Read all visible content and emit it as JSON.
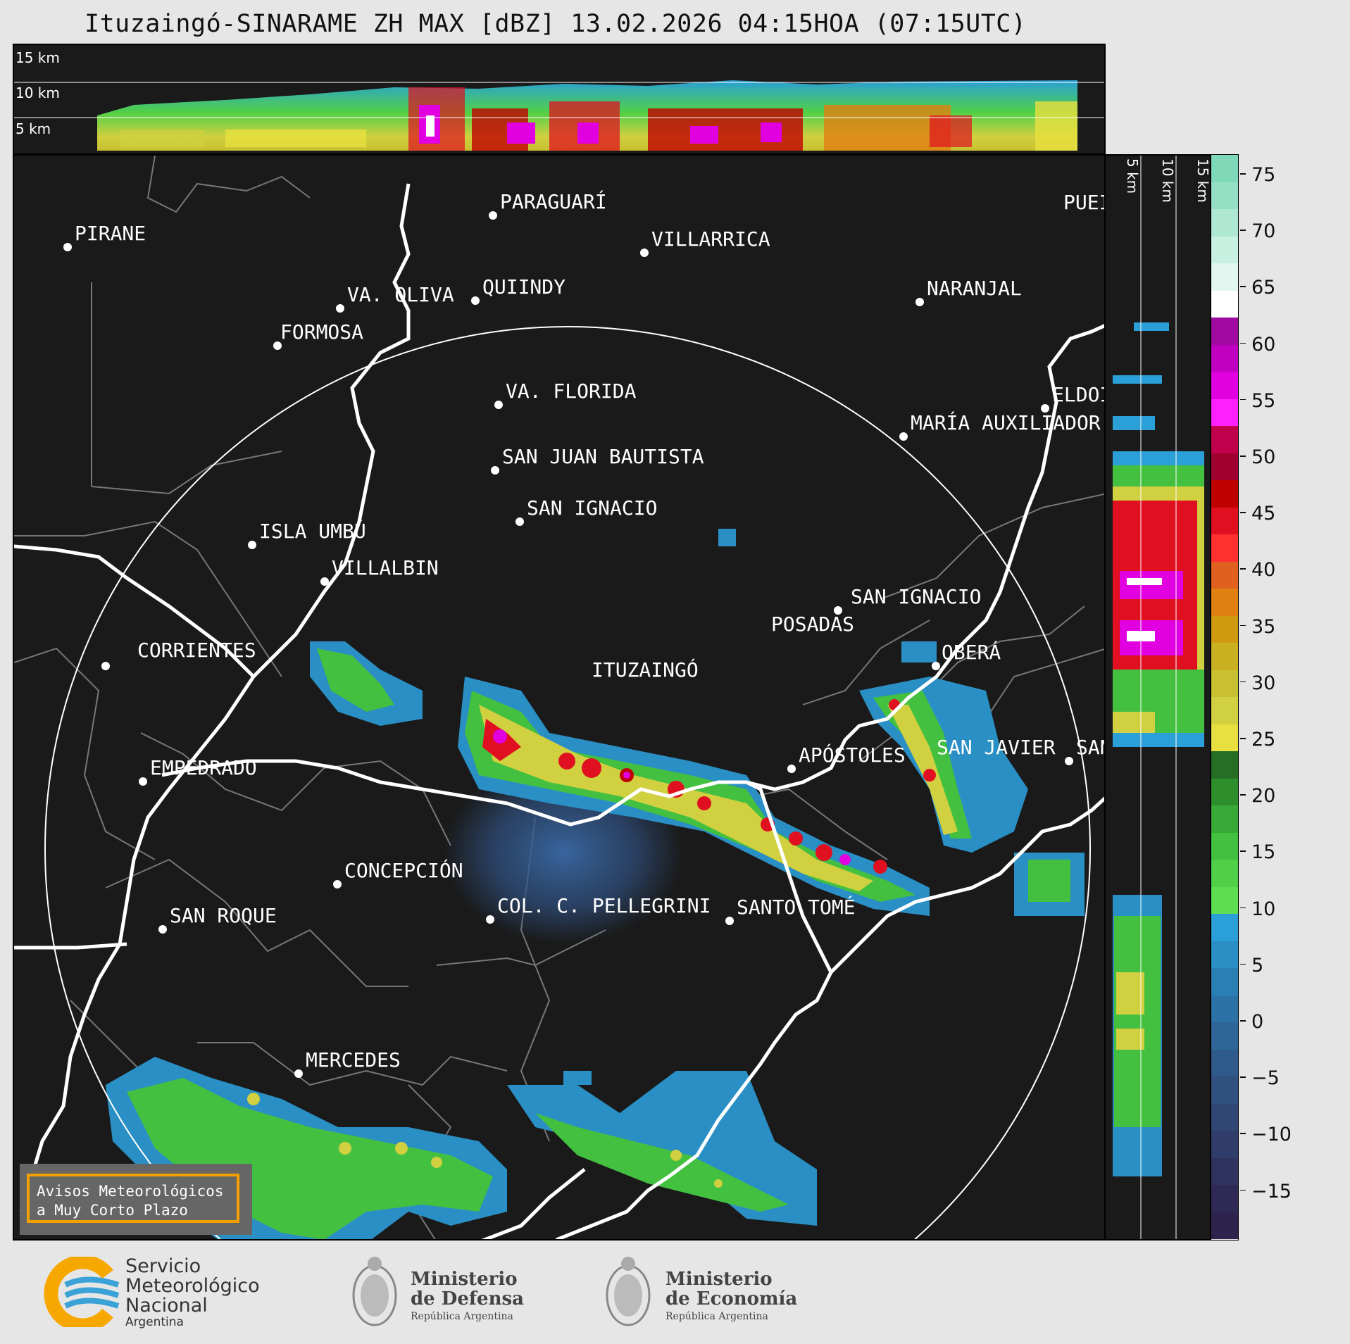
{
  "title": "Ituzaingó-SINARAME ZH MAX [dBZ] 13.02.2026 04:15HOA (07:15UTC)",
  "altitude_labels": {
    "top": [
      "15 km",
      "10 km",
      "5 km"
    ],
    "side": [
      "5 km",
      "10 km",
      "15 km"
    ]
  },
  "colorbar": {
    "ticks": [
      "75",
      "70",
      "65",
      "60",
      "55",
      "50",
      "45",
      "40",
      "35",
      "30",
      "25",
      "20",
      "15",
      "10",
      "5",
      "0",
      "−5",
      "−10",
      "−15"
    ],
    "colors_top_to_bottom": [
      "#7fd8b8",
      "#95e0c4",
      "#aee8d2",
      "#c7f0e0",
      "#e0f6ee",
      "#ffffff",
      "#a00aa0",
      "#c000c0",
      "#e000e0",
      "#ff20ff",
      "#c0004a",
      "#a00030",
      "#c00000",
      "#e01020",
      "#ff3030",
      "#e06020",
      "#e08010",
      "#d09a10",
      "#c8b020",
      "#c8c030",
      "#d0d040",
      "#e8e040",
      "#266e24",
      "#2e8e2c",
      "#38a836",
      "#44c040",
      "#50d048",
      "#5cde50",
      "#2a9fd8",
      "#2a8fc4",
      "#2a80b4",
      "#2c72a6",
      "#2e6698",
      "#2f5a8c",
      "#30507f",
      "#304674",
      "#303c6a",
      "#30335e",
      "#2f2a55",
      "#2e234c"
    ]
  },
  "cities": [
    {
      "name": "PIRANE"
    },
    {
      "name": "PARAGUARÍ"
    },
    {
      "name": "VILLARRICA"
    },
    {
      "name": "QUIINDY"
    },
    {
      "name": "VA. OLIVA"
    },
    {
      "name": "FORMOSA"
    },
    {
      "name": "NARANJAL"
    },
    {
      "name": "PUEI"
    },
    {
      "name": "ELDOI"
    },
    {
      "name": "VA. FLORIDA"
    },
    {
      "name": "MARÍA AUXILIADOR"
    },
    {
      "name": "SAN JUAN BAUTISTA"
    },
    {
      "name": "SAN IGNACIO"
    },
    {
      "name": "ISLA UMBÚ"
    },
    {
      "name": "VILLALBIN"
    },
    {
      "name": "SAN IGNACIO"
    },
    {
      "name": "POSADAS"
    },
    {
      "name": "CORRIENTES"
    },
    {
      "name": "ITUZAINGÓ"
    },
    {
      "name": "OBERÁ"
    },
    {
      "name": "APÓSTOLES"
    },
    {
      "name": "SAN JAVIER"
    },
    {
      "name": "SAN"
    },
    {
      "name": "EMPEDRADO"
    },
    {
      "name": "CONCEPCIÓN"
    },
    {
      "name": "COL. C. PELLEGRINI"
    },
    {
      "name": "SANTO TOMÉ"
    },
    {
      "name": "SAN ROQUE"
    },
    {
      "name": "MERCEDES"
    }
  ],
  "alert_box": {
    "line1": "Avisos Meteorológicos",
    "line2": "a Muy Corto Plazo"
  },
  "logos": {
    "smn": {
      "line1": "Servicio",
      "line2": "Meteorológico",
      "line3": "Nacional",
      "line4": "Argentina"
    },
    "defensa": {
      "line1": "Ministerio",
      "line2": "de Defensa",
      "line3": "República Argentina"
    },
    "economia": {
      "line1": "Ministerio",
      "line2": "de Economía",
      "line3": "República Argentina"
    }
  }
}
